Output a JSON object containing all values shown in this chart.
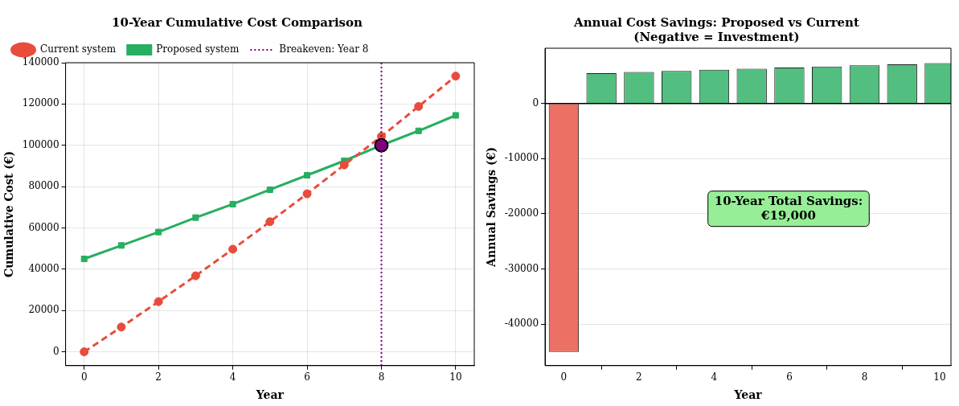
{
  "chart_data": [
    {
      "type": "line",
      "title": "10-Year Cumulative Cost Comparison",
      "xlabel": "Year",
      "ylabel": "Cumulative Cost (€)",
      "x": [
        0,
        1,
        2,
        3,
        4,
        5,
        6,
        7,
        8,
        9,
        10
      ],
      "xlim": [
        -0.5,
        10.5
      ],
      "xticks": [
        0,
        2,
        4,
        6,
        8,
        10
      ],
      "ylim": [
        -6700,
        140000
      ],
      "yticks": [
        0,
        20000,
        40000,
        60000,
        80000,
        100000,
        120000,
        140000
      ],
      "grid": true,
      "legend": "top left",
      "series": [
        {
          "name": "Current system",
          "color": "#e74c3c",
          "marker": "circle",
          "line_style": "dashed",
          "values": [
            0,
            12000,
            24300,
            36800,
            49700,
            63000,
            76500,
            90500,
            104300,
            118800,
            133500
          ]
        },
        {
          "name": "Proposed system",
          "color": "#27ae60",
          "marker": "square",
          "line_style": "solid",
          "values": [
            45000,
            51500,
            58000,
            65000,
            71500,
            78500,
            85500,
            92500,
            100000,
            107000,
            114500
          ]
        },
        {
          "type": "scatter",
          "color": "#800080",
          "marker": "circle",
          "x": [
            8
          ],
          "values": [
            100000
          ]
        }
      ],
      "ref_lines": [
        {
          "axis": "x",
          "value": 8,
          "label": "Breakeven: Year 8",
          "color": "#800080",
          "line_style": "dotted"
        }
      ]
    },
    {
      "type": "bar",
      "title": "Annual Cost Savings: Proposed vs Current\n(Negative = Investment)",
      "xlabel": "Year",
      "ylabel": "Annual Savings (€)",
      "x": [
        0,
        1,
        2,
        3,
        4,
        5,
        6,
        7,
        8,
        9,
        10
      ],
      "values": [
        -45000,
        5500,
        5700,
        5900,
        6100,
        6300,
        6500,
        6700,
        6900,
        7100,
        7300
      ],
      "colors": [
        "#ec7063",
        "#52be80",
        "#52be80",
        "#52be80",
        "#52be80",
        "#52be80",
        "#52be80",
        "#52be80",
        "#52be80",
        "#52be80",
        "#52be80"
      ],
      "xlim": [
        -0.5,
        10.3
      ],
      "xticks": [
        0,
        2,
        4,
        6,
        8,
        10
      ],
      "ylim": [
        -47500,
        10000
      ],
      "yticks": [
        -40000,
        -30000,
        -20000,
        -10000,
        0
      ],
      "grid": "y",
      "ref_lines": [
        {
          "axis": "y",
          "value": 0,
          "color": "#000000",
          "line_style": "solid"
        }
      ],
      "annotations": [
        "10-Year Total Savings:\n€19,000"
      ]
    }
  ]
}
